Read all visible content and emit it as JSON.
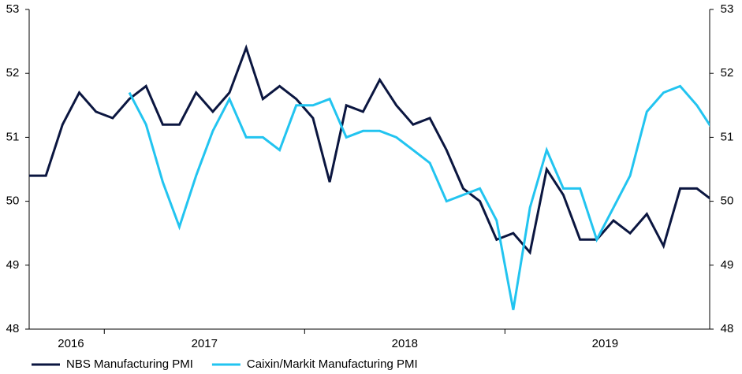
{
  "chart_data": {
    "type": "line",
    "categories": [
      null,
      null,
      null,
      "2016",
      null,
      null,
      null,
      null,
      null,
      null,
      null,
      "2017",
      null,
      null,
      null,
      null,
      null,
      null,
      null,
      null,
      null,
      null,
      null,
      "2018",
      null,
      null,
      null,
      null,
      null,
      null,
      null,
      null,
      null,
      null,
      null,
      "2019",
      null,
      null,
      null,
      null,
      null,
      null
    ],
    "series": [
      {
        "name": "NBS Manufacturing PMI",
        "color": "#0b1640",
        "values": [
          50.4,
          50.4,
          51.2,
          51.7,
          51.4,
          51.3,
          51.6,
          51.8,
          51.2,
          51.2,
          51.7,
          51.4,
          51.7,
          52.4,
          51.6,
          51.8,
          51.6,
          51.3,
          50.3,
          51.5,
          51.4,
          51.9,
          51.5,
          51.2,
          51.3,
          50.8,
          50.2,
          50.0,
          49.4,
          49.5,
          49.2,
          50.5,
          50.1,
          49.4,
          49.4,
          49.7,
          49.5,
          49.8,
          49.3,
          50.2,
          50.2,
          50.0
        ]
      },
      {
        "name": "Caixin/Markit Manufacturing PMI",
        "color": "#22c4f0",
        "axis": "y2",
        "values": [
          null,
          null,
          null,
          null,
          null,
          null,
          51.7,
          51.2,
          50.3,
          49.6,
          50.4,
          51.1,
          51.6,
          51.0,
          51.0,
          50.8,
          51.5,
          51.5,
          51.6,
          51.0,
          51.1,
          51.1,
          51.0,
          50.8,
          50.6,
          50.0,
          50.1,
          50.2,
          49.7,
          48.3,
          49.9,
          50.8,
          50.2,
          50.2,
          49.4,
          49.9,
          50.4,
          51.4,
          51.7,
          51.8,
          51.5,
          51.1
        ]
      }
    ],
    "ylim": [
      48,
      53
    ],
    "yticks": [
      48,
      49,
      50,
      51,
      52,
      53
    ],
    "y2lim": [
      48,
      53
    ],
    "y2ticks": [
      48,
      49,
      50,
      51,
      52,
      53
    ],
    "legend": "bottom"
  }
}
